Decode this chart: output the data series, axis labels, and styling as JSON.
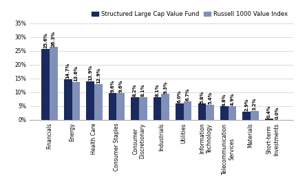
{
  "categories": [
    "Financials",
    "Energy",
    "Health Care",
    "Consumer Staples",
    "Consumer\nDiscretionary",
    "Industrials",
    "Utilities",
    "Information\nTechnology",
    "Telecommunication\nServices",
    "Materials",
    "Short-term\nInvestments"
  ],
  "fund_values": [
    25.6,
    14.7,
    13.9,
    9.6,
    8.2,
    8.1,
    6.0,
    5.8,
    4.8,
    2.9,
    0.4
  ],
  "benchmark_values": [
    26.3,
    13.6,
    12.9,
    9.6,
    8.1,
    9.3,
    6.7,
    5.4,
    4.9,
    3.2,
    0.0
  ],
  "fund_color": "#1a2a5e",
  "benchmark_color": "#8090b8",
  "fund_label": "Structured Large Cap Value Fund",
  "benchmark_label": "Russell 1000 Value Index",
  "ylim_max": 35,
  "yticks": [
    0,
    5,
    10,
    15,
    20,
    25,
    30,
    35
  ],
  "bar_width": 0.36,
  "label_fontsize": 4.8,
  "tick_fontsize": 5.5,
  "legend_fontsize": 6.2,
  "background_color": "#ffffff",
  "grid_color": "#cccccc",
  "bottom_spine_color": "#aaaaaa"
}
